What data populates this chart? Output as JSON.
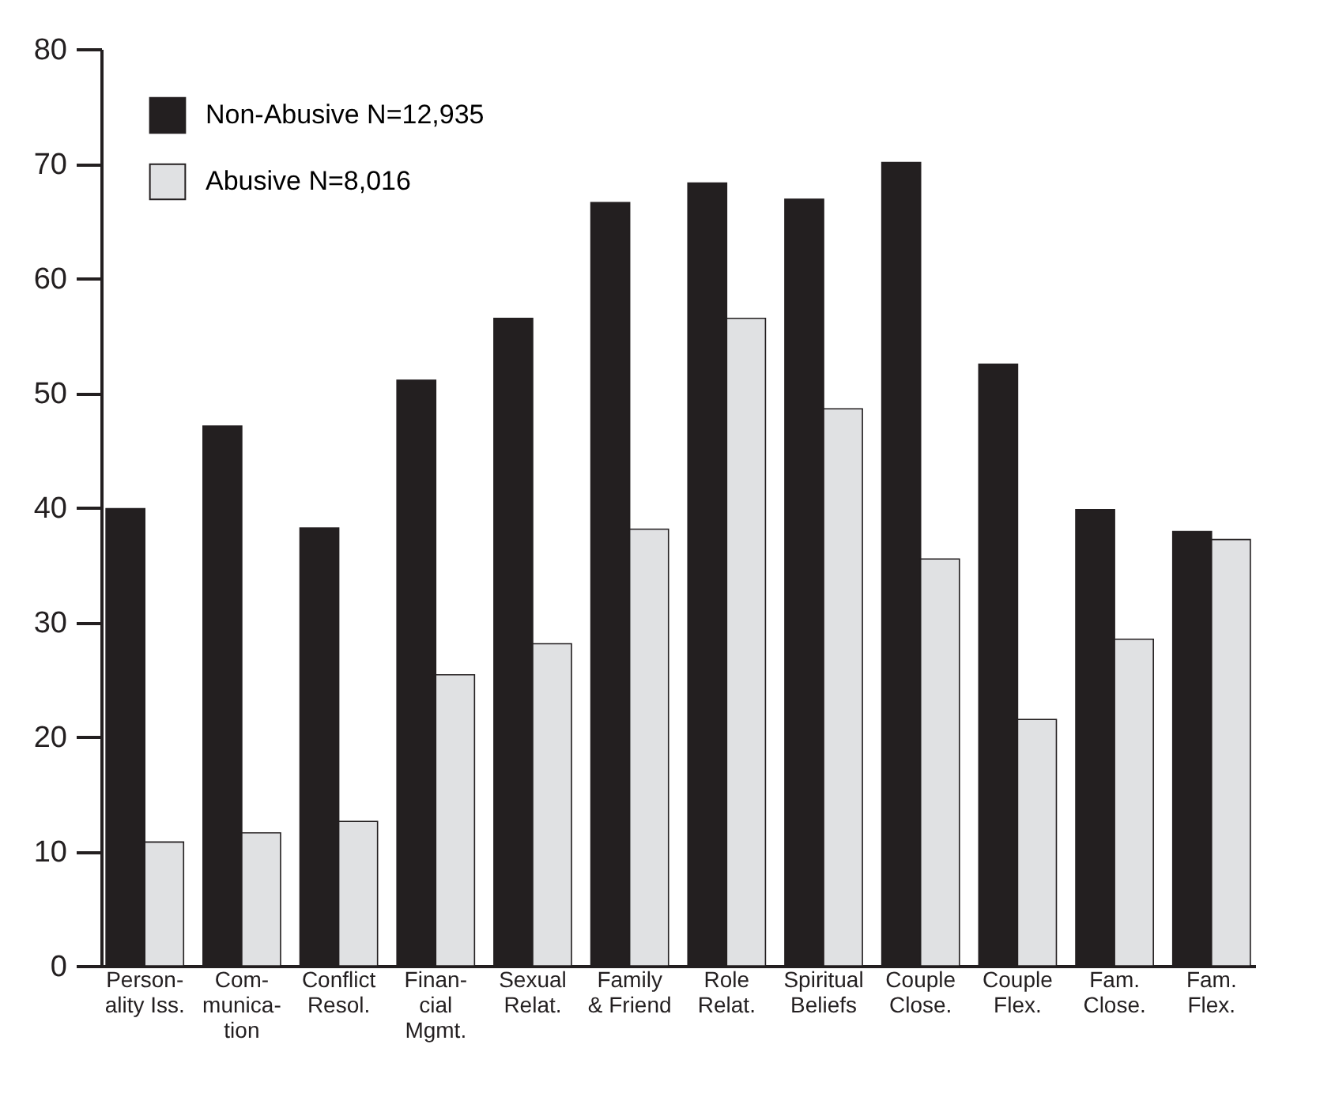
{
  "chart_data": {
    "type": "bar",
    "categories": [
      "Person-\nality Iss.",
      "Com-\nmunica-\ntion",
      "Conflict\nResol.",
      "Finan-\ncial\nMgmt.",
      "Sexual\nRelat.",
      "Family\n& Friend",
      "Role\nRelat.",
      "Spiritual\nBeliefs",
      "Couple\nClose.",
      "Couple\nFlex.",
      "Fam.\nClose.",
      "Fam.\nFlex."
    ],
    "series": [
      {
        "name": "Non-Abusive N=12,935",
        "color": "#231f20",
        "values": [
          39.9,
          47.1,
          38.2,
          51.1,
          56.5,
          66.6,
          68.3,
          66.9,
          70.1,
          52.5,
          39.8,
          37.9
        ]
      },
      {
        "name": "Abusive N=8,016",
        "color": "#e0e1e3",
        "values": [
          10.8,
          11.6,
          12.6,
          25.4,
          28.1,
          38.1,
          56.5,
          48.6,
          35.5,
          21.5,
          28.5,
          37.2
        ]
      }
    ],
    "ylim": [
      0,
      80
    ],
    "yticks": [
      0,
      10,
      20,
      30,
      40,
      50,
      60,
      70,
      80
    ],
    "grid": false,
    "legend": "top left"
  }
}
